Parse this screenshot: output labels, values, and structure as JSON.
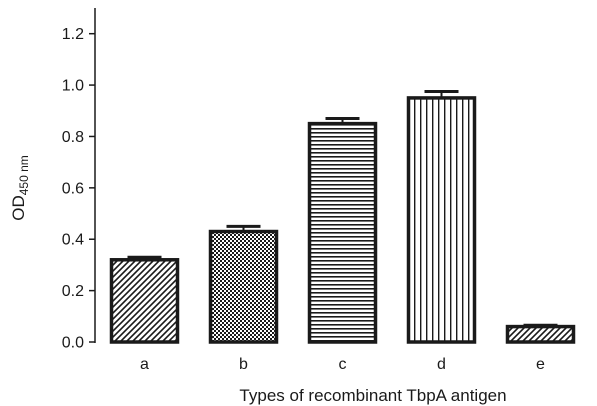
{
  "chart_data": {
    "type": "bar",
    "categories": [
      "a",
      "b",
      "c",
      "d",
      "e"
    ],
    "values": [
      0.32,
      0.43,
      0.85,
      0.95,
      0.06
    ],
    "errors": [
      0.01,
      0.02,
      0.02,
      0.025,
      0.005
    ],
    "patterns": [
      "diagonal-hatch",
      "checker",
      "horizontal-lines",
      "vertical-lines",
      "diagonal-hatch"
    ],
    "xlabel": "Types of recombinant TbpA antigen",
    "ylabel_main": "OD",
    "ylabel_sub": "450 nm",
    "ylim": [
      0,
      1.3
    ],
    "yticks": [
      "0.0",
      "0.2",
      "0.4",
      "0.6",
      "0.8",
      "1.0",
      "1.2"
    ],
    "ytick_values": [
      0,
      0.2,
      0.4,
      0.6,
      0.8,
      1.0,
      1.2
    ],
    "grid": false,
    "legend": "none",
    "colors": {
      "bar_stroke": "#1a1a1a",
      "bar_fill": "#ffffff",
      "axis": "#1a1a1a"
    }
  }
}
